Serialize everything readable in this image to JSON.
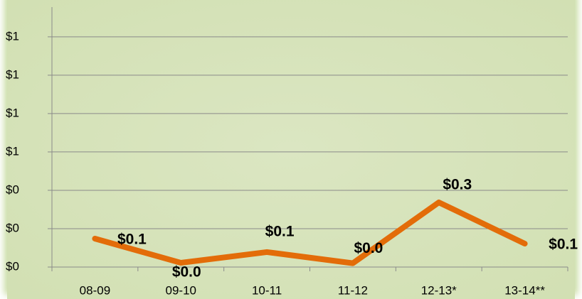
{
  "chart_data": {
    "type": "line",
    "categories": [
      "08-09",
      "09-10",
      "10-11",
      "11-12",
      "12-13*",
      "13-14**"
    ],
    "series": [
      {
        "name": null,
        "color": "#e36c09",
        "values": [
          0.148,
          0.022,
          0.078,
          0.02,
          0.337,
          0.122
        ],
        "value_labels": [
          "$0.1",
          "$0.0",
          "$0.1",
          "$0.0",
          "$0.3",
          "$0.1"
        ]
      }
    ],
    "ylim": [
      0,
      1.355
    ],
    "yticks": [
      {
        "value": 0,
        "label": "$0"
      },
      {
        "value": 0.2,
        "label": "$0"
      },
      {
        "value": 0.4,
        "label": "$0"
      },
      {
        "value": 0.6,
        "label": "$1"
      },
      {
        "value": 0.8,
        "label": "$1"
      },
      {
        "value": 1.0,
        "label": "$1"
      },
      {
        "value": 1.2,
        "label": "$1"
      }
    ],
    "grid": true
  }
}
